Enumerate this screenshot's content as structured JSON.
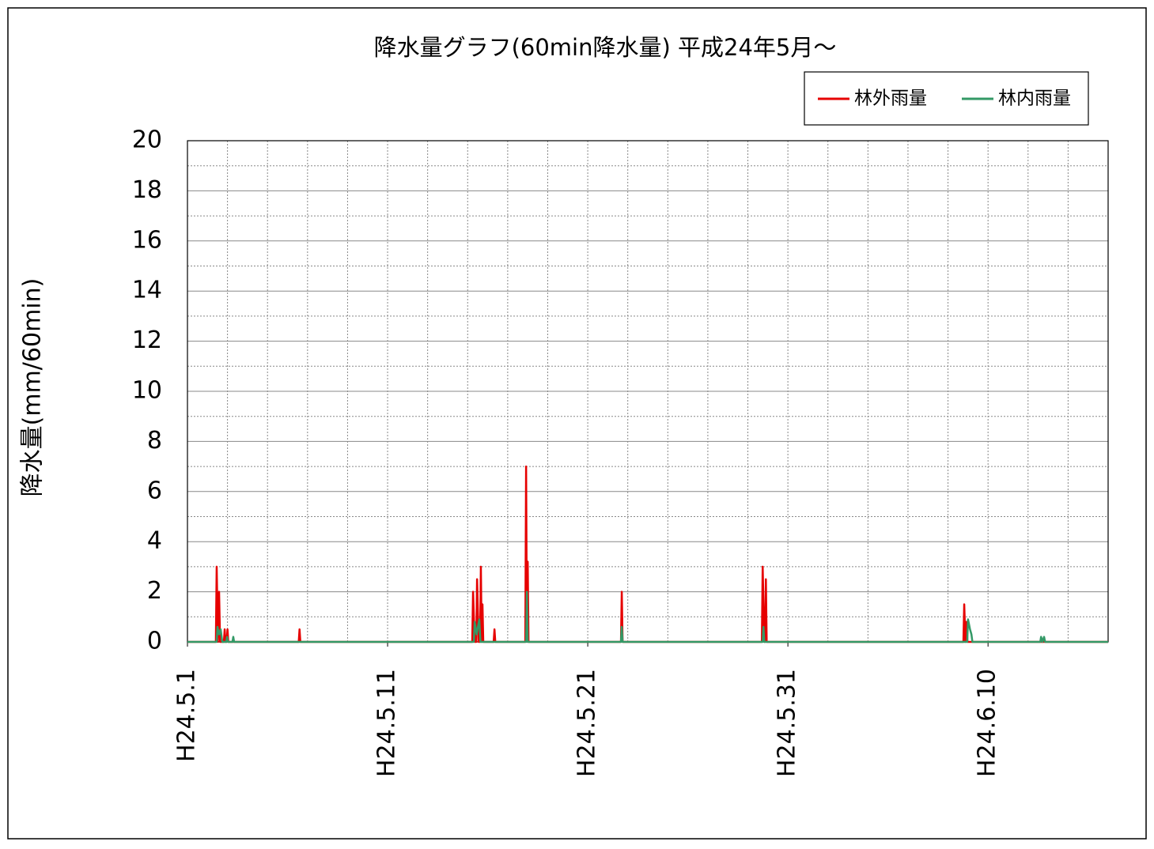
{
  "chart_data": {
    "type": "line",
    "title": "降水量グラフ(60min降水量) 平成24年5月～",
    "y_label": "降水量(mm/60min)",
    "xlim": [
      0,
      46
    ],
    "xticks": [
      {
        "value": 0,
        "label": "H24.5.1"
      },
      {
        "value": 10,
        "label": "H24.5.11"
      },
      {
        "value": 20,
        "label": "H24.5.21"
      },
      {
        "value": 30,
        "label": "H24.5.31"
      },
      {
        "value": 40,
        "label": "H24.6.10"
      }
    ],
    "xminorticks": [
      2,
      4,
      6,
      8,
      12,
      14,
      16,
      18,
      22,
      24,
      26,
      28,
      32,
      34,
      36,
      38,
      42,
      44
    ],
    "ylim": [
      0,
      20
    ],
    "yticks": [
      0,
      2,
      4,
      6,
      8,
      10,
      12,
      14,
      16,
      18,
      20
    ],
    "yminorticks": [
      1,
      3,
      5,
      7,
      9,
      11,
      13,
      15,
      17,
      19
    ],
    "grid": true,
    "legend": "top-right",
    "series": [
      {
        "name": "林外雨量",
        "color": "#e60000",
        "x": [
          0,
          1.42,
          1.46,
          1.52,
          1.58,
          1.63,
          1.82,
          1.86,
          1.9,
          1.96,
          2.0,
          2.04,
          5.56,
          5.6,
          5.64,
          14.23,
          14.27,
          14.35,
          14.43,
          14.47,
          14.55,
          14.62,
          14.66,
          14.7,
          14.74,
          14.78,
          15.3,
          15.34,
          15.38,
          16.88,
          16.92,
          16.96,
          17.0,
          17.04,
          21.66,
          21.7,
          21.74,
          28.7,
          28.74,
          28.82,
          28.86,
          28.9,
          28.94,
          38.77,
          38.81,
          38.87,
          38.93,
          38.97,
          46
        ],
        "values": [
          0,
          0,
          3,
          0,
          2,
          0,
          0,
          0.5,
          0,
          0,
          0.5,
          0,
          0,
          0.5,
          0,
          0,
          2,
          0,
          0,
          2.5,
          0,
          0,
          3,
          0,
          1.5,
          0,
          0,
          0.5,
          0,
          0,
          7,
          0,
          3.2,
          0,
          0,
          2,
          0,
          0,
          3,
          0,
          0,
          2.5,
          0,
          0,
          1.5,
          0,
          0.8,
          0,
          0
        ]
      },
      {
        "name": "林内雨量",
        "color": "#339966",
        "x": [
          0,
          1.46,
          1.5,
          1.58,
          1.66,
          1.74,
          1.94,
          1.98,
          2.02,
          2.25,
          2.29,
          2.33,
          14.31,
          14.35,
          14.45,
          14.58,
          14.64,
          16.92,
          16.96,
          17.0,
          21.66,
          21.7,
          21.74,
          28.74,
          28.78,
          28.82,
          38.96,
          39.0,
          39.1,
          39.17,
          39.22,
          42.61,
          42.65,
          42.72,
          42.8,
          42.85,
          46
        ],
        "values": [
          0,
          0,
          0.6,
          0.3,
          0.5,
          0,
          0,
          0.2,
          0,
          0,
          0.2,
          0,
          0,
          0.8,
          0.3,
          0.9,
          0,
          0,
          2,
          0,
          0,
          0.6,
          0,
          0,
          0.6,
          0,
          0,
          0.9,
          0.5,
          0.3,
          0,
          0,
          0.2,
          0,
          0.2,
          0,
          0
        ]
      }
    ]
  }
}
